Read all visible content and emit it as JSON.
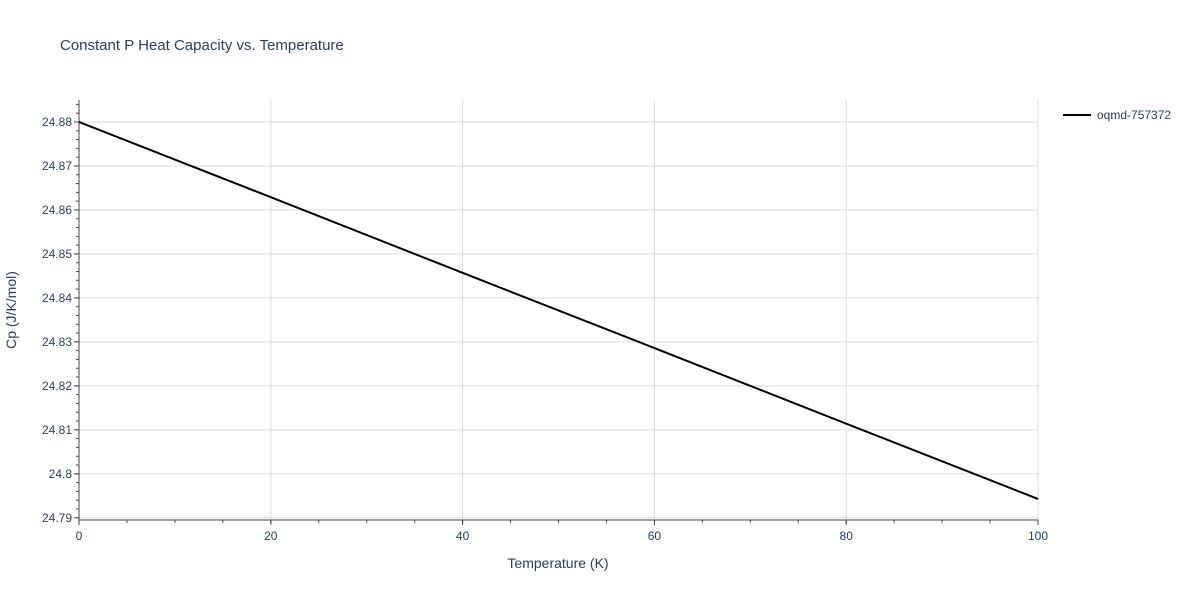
{
  "chart_data": {
    "type": "line",
    "title": "Constant P Heat Capacity vs. Temperature",
    "xlabel": "Temperature (K)",
    "ylabel": "Cp (J/K/mol)",
    "xlim": [
      0,
      100
    ],
    "ylim": [
      24.7895,
      24.885
    ],
    "x_ticks": [
      0,
      20,
      40,
      60,
      80,
      100
    ],
    "x_tick_labels": [
      "0",
      "20",
      "40",
      "60",
      "80",
      "100"
    ],
    "y_ticks": [
      24.79,
      24.8,
      24.81,
      24.82,
      24.83,
      24.84,
      24.85,
      24.86,
      24.87,
      24.88
    ],
    "y_tick_labels": [
      "24.79",
      "24.8",
      "24.81",
      "24.82",
      "24.83",
      "24.84",
      "24.85",
      "24.86",
      "24.87",
      "24.88"
    ],
    "grid": true,
    "legend_position": "top-right",
    "series": [
      {
        "name": "oqmd-757372",
        "color": "#000000",
        "x": [
          0,
          20,
          40,
          60,
          80,
          100
        ],
        "y": [
          24.88,
          24.8629,
          24.8457,
          24.8286,
          24.8114,
          24.7943
        ]
      }
    ]
  }
}
